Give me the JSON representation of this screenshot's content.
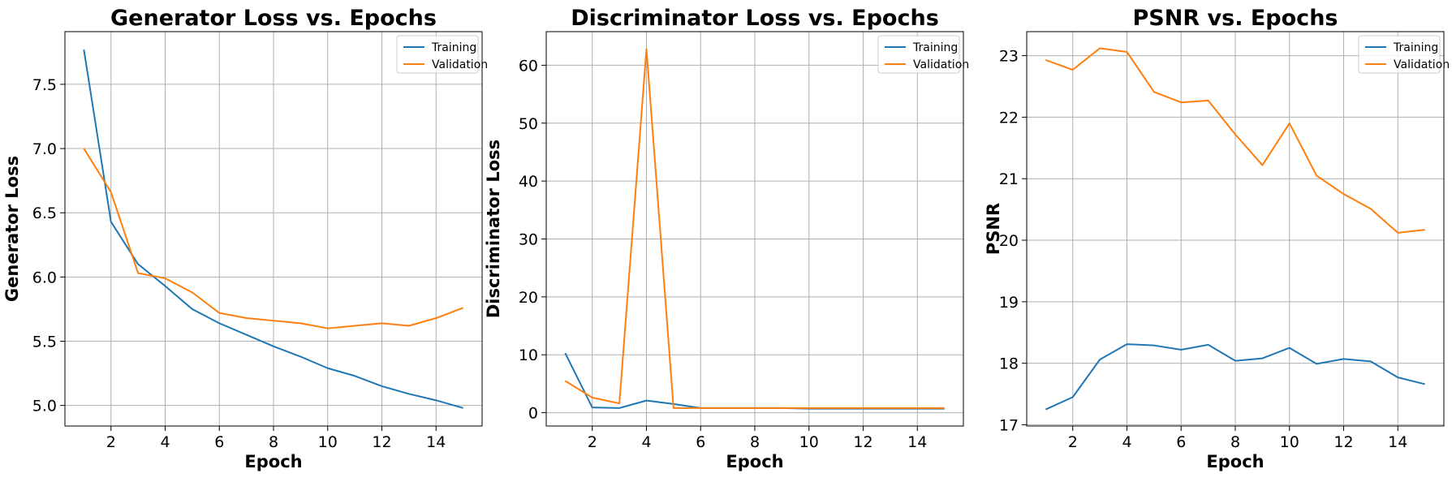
{
  "chart_data": [
    {
      "type": "line",
      "title": "Generator Loss vs. Epochs",
      "xlabel": "Epoch",
      "ylabel": "Generator Loss",
      "xlim": [
        0.3,
        15.7
      ],
      "ylim": [
        4.84,
        7.91
      ],
      "xticks": [
        2,
        4,
        6,
        8,
        10,
        12,
        14
      ],
      "yticks": [
        5.0,
        5.5,
        6.0,
        6.5,
        7.0,
        7.5
      ],
      "ytick_labels": [
        "5.0",
        "5.5",
        "6.0",
        "6.5",
        "7.0",
        "7.5"
      ],
      "grid": true,
      "legend_position": "top-right",
      "x": [
        1,
        2,
        3,
        4,
        5,
        6,
        7,
        8,
        9,
        10,
        11,
        12,
        13,
        14,
        15
      ],
      "series": [
        {
          "name": "Training",
          "color": "#1f77b4",
          "values": [
            7.77,
            6.43,
            6.1,
            5.93,
            5.75,
            5.64,
            5.55,
            5.46,
            5.38,
            5.29,
            5.23,
            5.15,
            5.09,
            5.04,
            4.98
          ]
        },
        {
          "name": "Validation",
          "color": "#ff7f0e",
          "values": [
            7.0,
            6.66,
            6.03,
            5.99,
            5.88,
            5.72,
            5.68,
            5.66,
            5.64,
            5.6,
            5.62,
            5.64,
            5.62,
            5.68,
            5.76
          ]
        }
      ]
    },
    {
      "type": "line",
      "title": "Discriminator Loss vs. Epochs",
      "xlabel": "Epoch",
      "ylabel": "Discriminator Loss",
      "xlim": [
        0.3,
        15.7
      ],
      "ylim": [
        -2.3,
        65.8
      ],
      "xticks": [
        2,
        4,
        6,
        8,
        10,
        12,
        14
      ],
      "yticks": [
        0,
        10,
        20,
        30,
        40,
        50,
        60
      ],
      "ytick_labels": [
        "0",
        "10",
        "20",
        "30",
        "40",
        "50",
        "60"
      ],
      "grid": true,
      "legend_position": "top-right",
      "x": [
        1,
        2,
        3,
        4,
        5,
        6,
        7,
        8,
        9,
        10,
        11,
        12,
        13,
        14,
        15
      ],
      "series": [
        {
          "name": "Training",
          "color": "#1f77b4",
          "values": [
            10.3,
            0.9,
            0.8,
            2.1,
            1.5,
            0.8,
            0.8,
            0.8,
            0.8,
            0.7,
            0.7,
            0.7,
            0.7,
            0.7,
            0.7
          ]
        },
        {
          "name": "Validation",
          "color": "#ff7f0e",
          "values": [
            5.5,
            2.6,
            1.6,
            62.8,
            0.8,
            0.8,
            0.8,
            0.8,
            0.8,
            0.8,
            0.8,
            0.8,
            0.8,
            0.8,
            0.8
          ]
        }
      ]
    },
    {
      "type": "line",
      "title": "PSNR vs. Epochs",
      "xlabel": "Epoch",
      "ylabel": "PSNR",
      "xlim": [
        0.3,
        15.7
      ],
      "ylim": [
        16.98,
        23.39
      ],
      "xticks": [
        2,
        4,
        6,
        8,
        10,
        12,
        14
      ],
      "yticks": [
        17,
        18,
        19,
        20,
        21,
        22,
        23
      ],
      "ytick_labels": [
        "17",
        "18",
        "19",
        "20",
        "21",
        "22",
        "23"
      ],
      "grid": true,
      "legend_position": "top-right",
      "x": [
        1,
        2,
        3,
        4,
        5,
        6,
        7,
        8,
        9,
        10,
        11,
        12,
        13,
        14,
        15
      ],
      "series": [
        {
          "name": "Training",
          "color": "#1f77b4",
          "values": [
            17.25,
            17.45,
            18.06,
            18.31,
            18.29,
            18.22,
            18.3,
            18.04,
            18.08,
            18.25,
            17.99,
            18.07,
            18.03,
            17.77,
            17.66
          ]
        },
        {
          "name": "Validation",
          "color": "#ff7f0e",
          "values": [
            22.93,
            22.77,
            23.12,
            23.06,
            22.41,
            22.24,
            22.27,
            21.72,
            21.22,
            21.9,
            21.05,
            20.75,
            20.51,
            20.12,
            20.17
          ]
        }
      ]
    }
  ]
}
